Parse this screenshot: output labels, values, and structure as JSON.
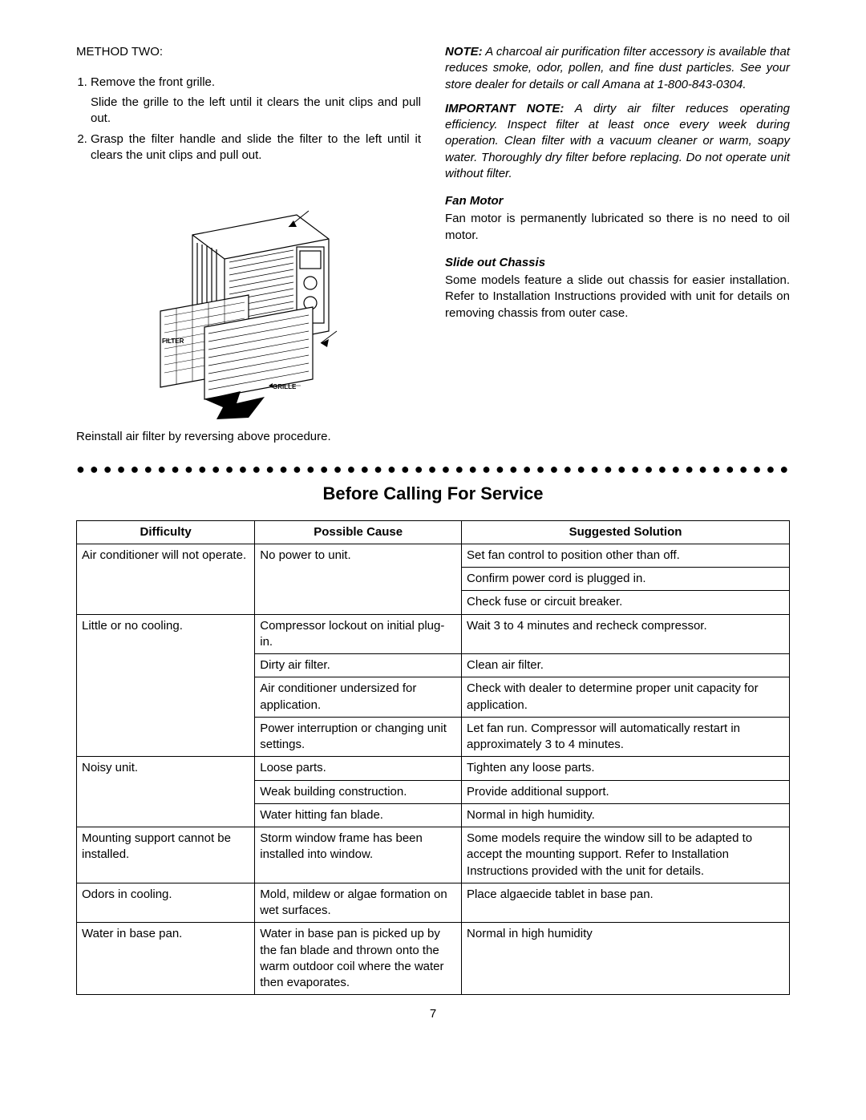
{
  "left": {
    "method_title": "METHOD TWO:",
    "steps": [
      {
        "main": "Remove the front grille.",
        "sub": "Slide the grille to the left until it clears the unit clips and pull out."
      },
      {
        "main": "Grasp the filter handle and slide the filter to the left until it clears the unit clips and pull out."
      }
    ],
    "reinstall": "Reinstall air filter by reversing above procedure.",
    "illus": {
      "filter_label": "FILTER",
      "grille_label": "GRILLE"
    }
  },
  "right": {
    "note_lead": "NOTE:",
    "note_body": "  A charcoal air purification filter accessory is available that reduces smoke, odor, pollen, and fine dust particles.  See your store dealer for details or call Amana at 1-800-843-0304.",
    "imp_lead": "IMPORTANT NOTE:",
    "imp_body": " A dirty air filter reduces operating efficiency.  Inspect filter at least once every week during operation.  Clean filter with a vacuum cleaner or warm, soapy water.  Thoroughly dry filter before replacing.  Do not operate unit without filter.",
    "fan_h": "Fan Motor",
    "fan_p": "Fan motor is permanently lubricated so there is no need to oil motor.",
    "slide_h": "Slide out Chassis",
    "slide_p": "Some models feature a slide out chassis for easier installation.  Refer to Installation Instructions provided with unit for details on removing chassis from outer case."
  },
  "section_title": "Before Calling For Service",
  "table": {
    "headers": [
      "Difficulty",
      "Possible Cause",
      "Suggested Solution"
    ],
    "rows": [
      {
        "d": "Air conditioner will not operate.",
        "c": "No power to unit.",
        "s": "Set fan control to position other than off.",
        "d_rowspan": 3,
        "c_rowspan": 3
      },
      {
        "s": "Confirm power cord is plugged in."
      },
      {
        "s": "Check fuse or circuit breaker."
      },
      {
        "d": "Little or no cooling.",
        "c": "Compressor lockout on initial plug-in.",
        "s": "Wait 3 to 4 minutes and recheck compressor.",
        "d_rowspan": 4
      },
      {
        "c": "Dirty air filter.",
        "s": "Clean air filter."
      },
      {
        "c": "Air conditioner undersized for application.",
        "s": "Check with dealer to determine proper unit capacity for application."
      },
      {
        "c": "Power interruption or changing unit settings.",
        "s": "Let fan run.  Compressor will automatically restart in approximately 3 to 4 minutes."
      },
      {
        "d": "Noisy unit.",
        "c": "Loose parts.",
        "s": "Tighten any loose parts.",
        "d_rowspan": 3
      },
      {
        "c": "Weak building construction.",
        "s": "Provide additional support."
      },
      {
        "c": "Water hitting fan blade.",
        "s": "Normal in high humidity."
      },
      {
        "d": "Mounting support cannot be installed.",
        "c": "Storm window frame has been installed into window.",
        "s": "Some models require the window sill to be adapted to accept the mounting support.  Refer to Installation Instructions provided with the unit for details."
      },
      {
        "d": "Odors in cooling.",
        "c": "Mold, mildew or algae formation on wet surfaces.",
        "s": "Place algaecide tablet in base pan."
      },
      {
        "d": "Water in base pan.",
        "c": "Water in base pan is picked up by the fan blade and thrown onto the warm outdoor coil where the water then evaporates.",
        "s": "Normal in high humidity"
      }
    ],
    "col_widths": [
      "25%",
      "29%",
      "46%"
    ]
  },
  "page_number": "7",
  "colors": {
    "text": "#000000",
    "border": "#000000",
    "background": "#ffffff"
  },
  "typography": {
    "body_font": "Arial",
    "body_size_pt": 11,
    "title_size_pt": 16
  }
}
